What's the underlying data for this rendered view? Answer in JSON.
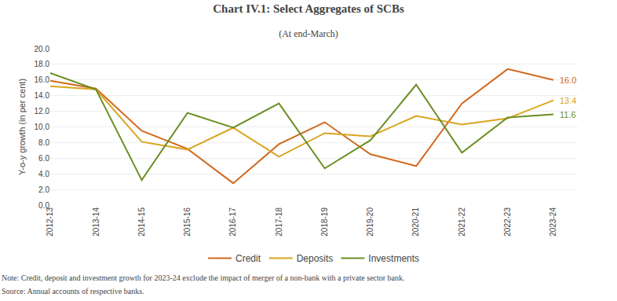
{
  "chart_data": {
    "type": "line",
    "title": "Chart IV.1: Select Aggregates of SCBs",
    "subtitle": "(At end-March)",
    "ylabel": "Y-o-y growth (in per cent)",
    "categories": [
      "2012-13",
      "2013-14",
      "2014-15",
      "2015-16",
      "2016-17",
      "2017-18",
      "2018-19",
      "2019-20",
      "2020-21",
      "2021-22",
      "2022-23",
      "2023-24"
    ],
    "series": [
      {
        "name": "Credit",
        "color": "#d2691e",
        "values": [
          15.9,
          14.9,
          9.5,
          7.2,
          2.8,
          7.8,
          10.6,
          6.5,
          5.0,
          13.0,
          17.4,
          16.0
        ]
      },
      {
        "name": "Deposits",
        "color": "#daa520",
        "values": [
          15.2,
          14.8,
          8.1,
          7.1,
          9.9,
          6.2,
          9.2,
          8.8,
          11.4,
          10.3,
          11.1,
          13.4
        ]
      },
      {
        "name": "Investments",
        "color": "#6b8e23",
        "values": [
          16.9,
          14.8,
          3.2,
          11.8,
          9.9,
          13.0,
          4.7,
          8.3,
          15.4,
          6.7,
          11.2,
          11.6
        ]
      }
    ],
    "annotations": [
      {
        "text": "16.0",
        "x": "2023-24",
        "y": 16.0,
        "color": "#d2691e"
      },
      {
        "text": "13.4",
        "x": "2023-24",
        "y": 13.4,
        "color": "#daa520"
      },
      {
        "text": "11.6",
        "x": "2023-24",
        "y": 11.6,
        "color": "#6b8e23"
      }
    ],
    "ylim": [
      0.0,
      20.0
    ],
    "yticks": [
      {
        "value": 0.0,
        "label": "0.0"
      },
      {
        "value": 2.0,
        "label": "2.0"
      },
      {
        "value": 4.0,
        "label": "4.0"
      },
      {
        "value": 6.0,
        "label": "6.0"
      },
      {
        "value": 8.0,
        "label": "8.0"
      },
      {
        "value": 10.0,
        "label": "10.0"
      },
      {
        "value": 12.0,
        "label": "12.0"
      },
      {
        "value": 14.0,
        "label": "14.0"
      },
      {
        "value": 16.0,
        "label": "16.0"
      },
      {
        "value": 18.0,
        "label": "18.0"
      },
      {
        "value": 20.0,
        "label": "20.0"
      }
    ],
    "grid": true,
    "legend": "bottom",
    "note": "Note: Credit, deposit and investment growth for 2023-24 exclude the impact of merger of a non-bank with a private sector bank.",
    "source": "Source: Annual accounts of respective banks."
  }
}
